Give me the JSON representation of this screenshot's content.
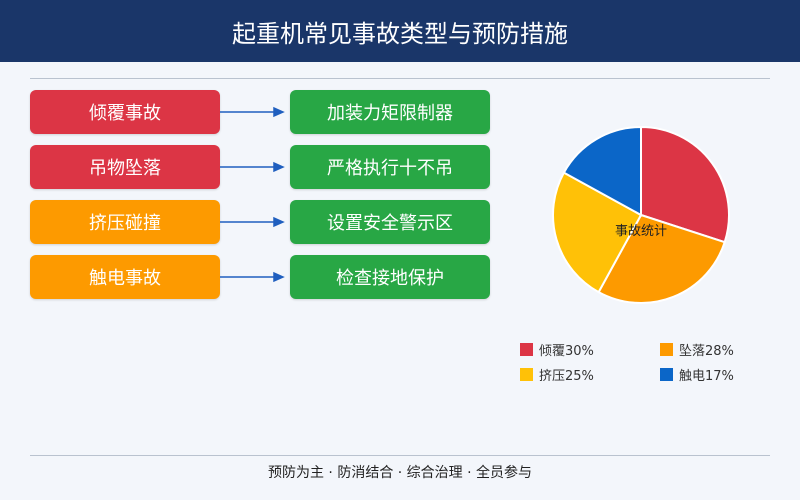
{
  "title": "起重机常见事故类型与预防措施",
  "rows": [
    {
      "cause": "倾覆事故",
      "measure": "加装力矩限制器",
      "color": "#dc3545"
    },
    {
      "cause": "吊物坠落",
      "measure": "严格执行十不吊",
      "color": "#dc3545"
    },
    {
      "cause": "挤压碰撞",
      "measure": "设置安全警示区",
      "color": "#fd9a00"
    },
    {
      "cause": "触电事故",
      "measure": "检查接地保护",
      "color": "#fd9a00"
    }
  ],
  "measure_color": "#28a745",
  "chart_data": {
    "type": "pie",
    "title": "事故统计",
    "categories": [
      "倾覆",
      "坠落",
      "挤压",
      "触电"
    ],
    "values": [
      30,
      28,
      25,
      17
    ],
    "unit": "%",
    "colors": [
      "#dc3545",
      "#fd9a00",
      "#ffc107",
      "#0b66c8"
    ],
    "legend": [
      "倾覆30%",
      "坠落28%",
      "挤压25%",
      "触电17%"
    ]
  },
  "footer": "预防为主 · 防消结合 · 综合治理 · 全员参与"
}
